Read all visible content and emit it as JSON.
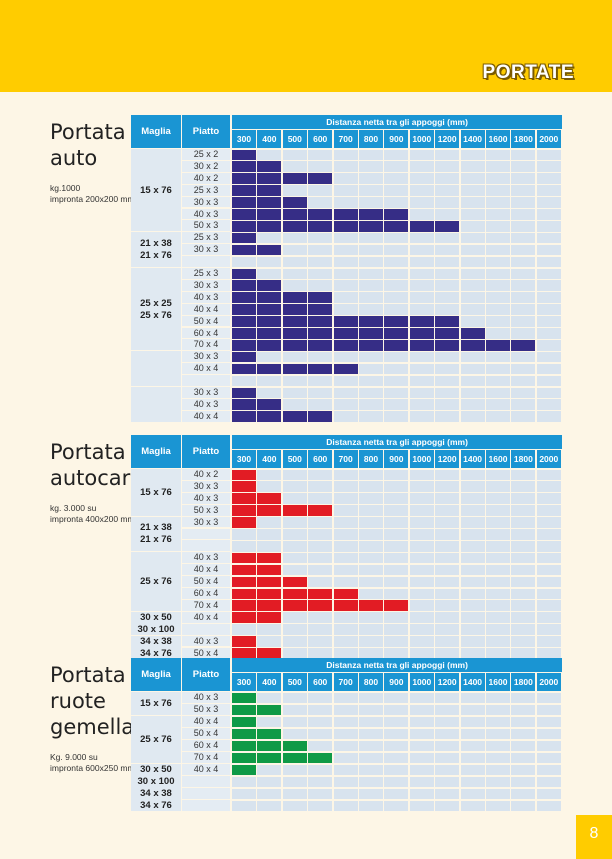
{
  "header": {
    "title": "PORTATE"
  },
  "page_number": "8",
  "colors": {
    "header_bg": "#ffcc00",
    "table_header_bg": "#1a95d3",
    "empty_cell": "#d8e3ee",
    "auto": "#362d86",
    "autocarro": "#e21c24",
    "ruote": "#0f9a46"
  },
  "distances": [
    "300",
    "400",
    "500",
    "600",
    "700",
    "800",
    "900",
    "1000",
    "1200",
    "1400",
    "1600",
    "1800",
    "2000"
  ],
  "sections": [
    {
      "id": "auto",
      "title_lines": [
        "Portata",
        "auto"
      ],
      "note_lines": [
        "kg.1000",
        "impronta 200x200 mm"
      ],
      "headers": {
        "maglia": "Maglia",
        "piatto": "Piatto",
        "distanza": "Distanza netta tra gli appoggi (mm)"
      },
      "fill_color": "#362d86",
      "maglia_groups": [
        {
          "labels": [
            "15 x 76"
          ],
          "start": 0,
          "count": 7
        },
        {
          "labels": [
            "21 x 38",
            "21 x 76"
          ],
          "start": 7,
          "count": 3
        },
        {
          "labels": [
            "25 x 25",
            "25 x 76"
          ],
          "start": 10,
          "count": 7
        },
        {
          "labels": [],
          "start": 17,
          "count": 3
        },
        {
          "labels": [],
          "start": 20,
          "count": 3
        }
      ],
      "rows": [
        {
          "piatto": "25 x 2",
          "filled": 1
        },
        {
          "piatto": "30 x 2",
          "filled": 2
        },
        {
          "piatto": "40 x 2",
          "filled": 4
        },
        {
          "piatto": "25 x 3",
          "filled": 2
        },
        {
          "piatto": "30 x 3",
          "filled": 3
        },
        {
          "piatto": "40 x 3",
          "filled": 7
        },
        {
          "piatto": "50 x 3",
          "filled": 9
        },
        {
          "piatto": "25 x 3",
          "filled": 1
        },
        {
          "piatto": "30 x 3",
          "filled": 2
        },
        {
          "piatto": "",
          "filled": 0
        },
        {
          "piatto": "25 x 3",
          "filled": 1
        },
        {
          "piatto": "30 x 3",
          "filled": 2
        },
        {
          "piatto": "40 x 3",
          "filled": 4
        },
        {
          "piatto": "40 x 4",
          "filled": 4
        },
        {
          "piatto": "50 x 4",
          "filled": 9
        },
        {
          "piatto": "60 x 4",
          "filled": 10
        },
        {
          "piatto": "70 x 4",
          "filled": 12
        },
        {
          "piatto": "30 x 3",
          "filled": 1
        },
        {
          "piatto": "40 x 4",
          "filled": 5
        },
        {
          "piatto": "",
          "filled": 0
        },
        {
          "piatto": "30 x 3",
          "filled": 1
        },
        {
          "piatto": "40 x 3",
          "filled": 2
        },
        {
          "piatto": "40 x 4",
          "filled": 4
        }
      ]
    },
    {
      "id": "autocarro",
      "title_lines": [
        "Portata",
        "autocarro"
      ],
      "note_lines": [
        "kg. 3.000 su",
        "impronta 400x200 mm"
      ],
      "headers": {
        "maglia": "Maglia",
        "piatto": "Piatto",
        "distanza": "Distanza netta tra gli appoggi (mm)"
      },
      "fill_color": "#e21c24",
      "maglia_groups": [
        {
          "labels": [
            "15 x 76"
          ],
          "start": 0,
          "count": 4
        },
        {
          "labels": [
            "21 x 38",
            "21 x 76"
          ],
          "start": 4,
          "count": 3
        },
        {
          "labels": [
            "25 x 76"
          ],
          "start": 7,
          "count": 5
        },
        {
          "labels": [
            "30 x 50",
            "30 x 100"
          ],
          "start": 12,
          "count": 2
        },
        {
          "labels": [
            "34 x 38",
            "34 x 76"
          ],
          "start": 14,
          "count": 2
        }
      ],
      "rows": [
        {
          "piatto": "40 x 2",
          "filled": 1
        },
        {
          "piatto": "30 x 3",
          "filled": 1
        },
        {
          "piatto": "40 x 3",
          "filled": 2
        },
        {
          "piatto": "50 x 3",
          "filled": 4
        },
        {
          "piatto": "30 x 3",
          "filled": 1
        },
        {
          "piatto": "",
          "filled": 0
        },
        {
          "piatto": "",
          "filled": 0
        },
        {
          "piatto": "40 x 3",
          "filled": 2
        },
        {
          "piatto": "40 x 4",
          "filled": 2
        },
        {
          "piatto": "50 x 4",
          "filled": 3
        },
        {
          "piatto": "60 x 4",
          "filled": 5
        },
        {
          "piatto": "70 x 4",
          "filled": 7
        },
        {
          "piatto": "40 x 4",
          "filled": 2
        },
        {
          "piatto": "",
          "filled": 0
        },
        {
          "piatto": "40 x 3",
          "filled": 1
        },
        {
          "piatto": "50 x 4",
          "filled": 2
        }
      ]
    },
    {
      "id": "ruote",
      "title_lines": [
        "Portata",
        "ruote",
        "gemellate"
      ],
      "note_lines": [
        "Kg. 9.000 su",
        "impronta 600x250 mm"
      ],
      "headers": {
        "maglia": "Maglia",
        "piatto": "Piatto",
        "distanza": "Distanza netta tra gli appoggi (mm)"
      },
      "fill_color": "#0f9a46",
      "maglia_groups": [
        {
          "labels": [
            "15 x 76"
          ],
          "start": 0,
          "count": 2
        },
        {
          "labels": [
            "25 x 76"
          ],
          "start": 2,
          "count": 4
        },
        {
          "labels": [
            "30 x 50",
            "30 x 100",
            "34 x 38",
            "34 x 76"
          ],
          "start": 6,
          "count": 4
        }
      ],
      "rows": [
        {
          "piatto": "40 x 3",
          "filled": 1
        },
        {
          "piatto": "50 x 3",
          "filled": 2
        },
        {
          "piatto": "40 x 4",
          "filled": 1
        },
        {
          "piatto": "50 x 4",
          "filled": 2
        },
        {
          "piatto": "60 x 4",
          "filled": 3
        },
        {
          "piatto": "70 x 4",
          "filled": 4
        },
        {
          "piatto": "40 x 4",
          "filled": 1
        },
        {
          "piatto": "",
          "filled": 0
        },
        {
          "piatto": "",
          "filled": 0
        },
        {
          "piatto": "",
          "filled": 0
        }
      ]
    }
  ]
}
